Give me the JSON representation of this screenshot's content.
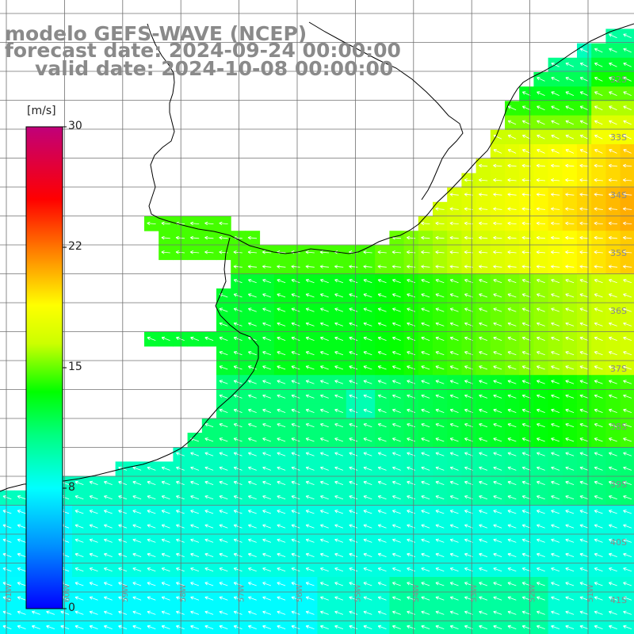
{
  "title": {
    "line1": "modelo GEFS-WAVE (NCEP)",
    "line2": "forecast date: 2024-09-24 00:00:00",
    "line3": "valid date: 2024-10-08 00:00:00"
  },
  "colorbar": {
    "unit": "[m/s]",
    "min": 0,
    "max": 30,
    "ticks": [
      "30",
      "22",
      "15",
      "8",
      "0"
    ]
  },
  "map": {
    "lat_labels": [
      "32S",
      "33S",
      "34S",
      "35S",
      "36S",
      "37S",
      "38S",
      "39S",
      "40S",
      "41S"
    ],
    "lon_labels": [
      "61W",
      "60W",
      "59W",
      "58W",
      "57W",
      "56W",
      "55W",
      "54W",
      "53W",
      "52W",
      "51W"
    ]
  },
  "colors": {
    "title_gray": "#8a8a8a",
    "coast": "#000000",
    "grid": "#707070",
    "arrow": "#ffffff"
  }
}
